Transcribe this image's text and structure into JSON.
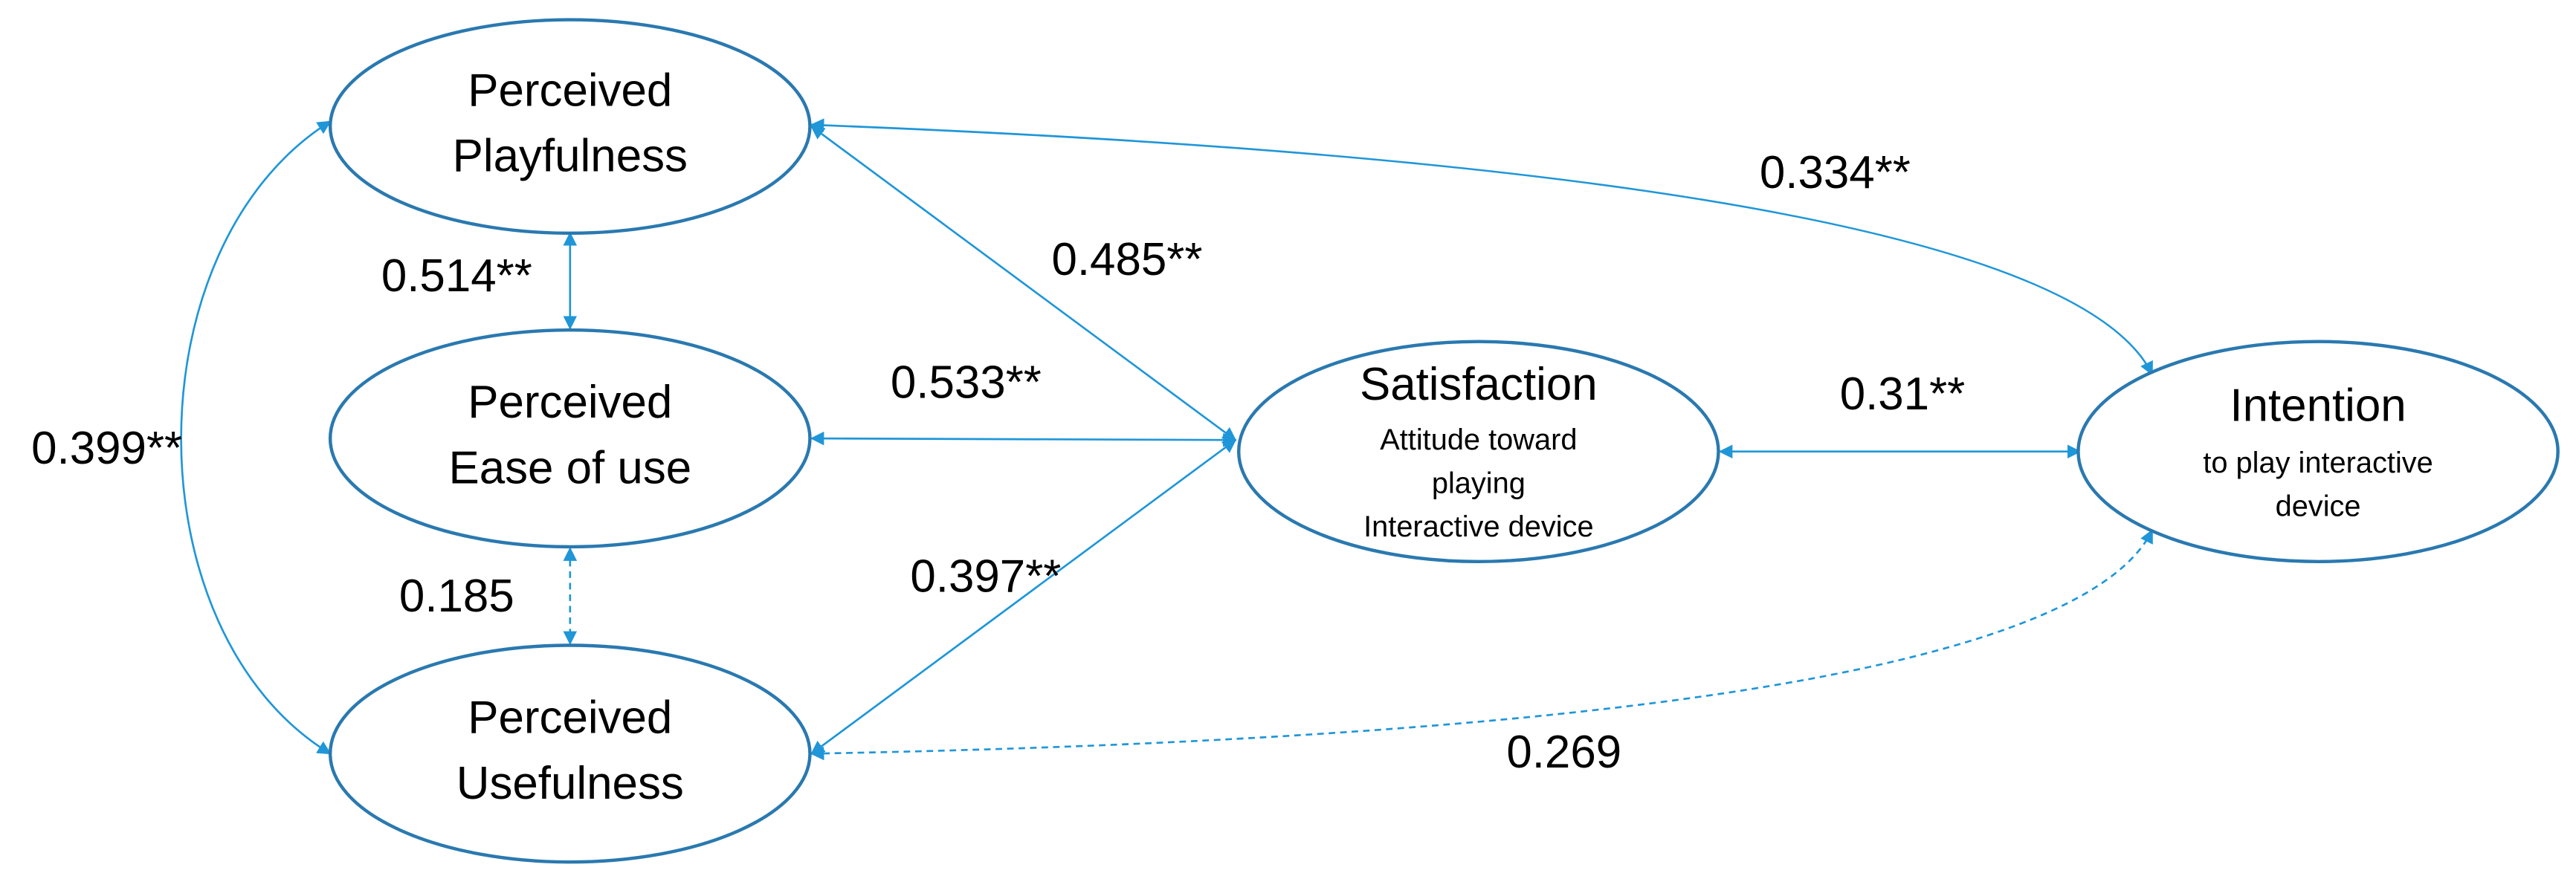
{
  "nodes": [
    {
      "lines": [
        "Perceived",
        "Playfulness"
      ]
    },
    {
      "lines": [
        "Perceived",
        "Ease of use"
      ]
    },
    {
      "lines": [
        "Perceived",
        "Usefulness"
      ]
    },
    {
      "title": "Satisfaction",
      "lines": [
        "Attitude toward",
        "playing",
        "Interactive device"
      ]
    },
    {
      "title": "Intention",
      "lines": [
        "to play interactive",
        "device"
      ]
    }
  ],
  "edges": [
    {
      "label": "0.514**"
    },
    {
      "label": "0.185"
    },
    {
      "label": "0.533**"
    },
    {
      "label": "0.485**"
    },
    {
      "label": "0.397**"
    },
    {
      "label": "0.31**"
    },
    {
      "label": "0.334**"
    },
    {
      "label": "0.269"
    },
    {
      "label": "0.399**"
    }
  ]
}
